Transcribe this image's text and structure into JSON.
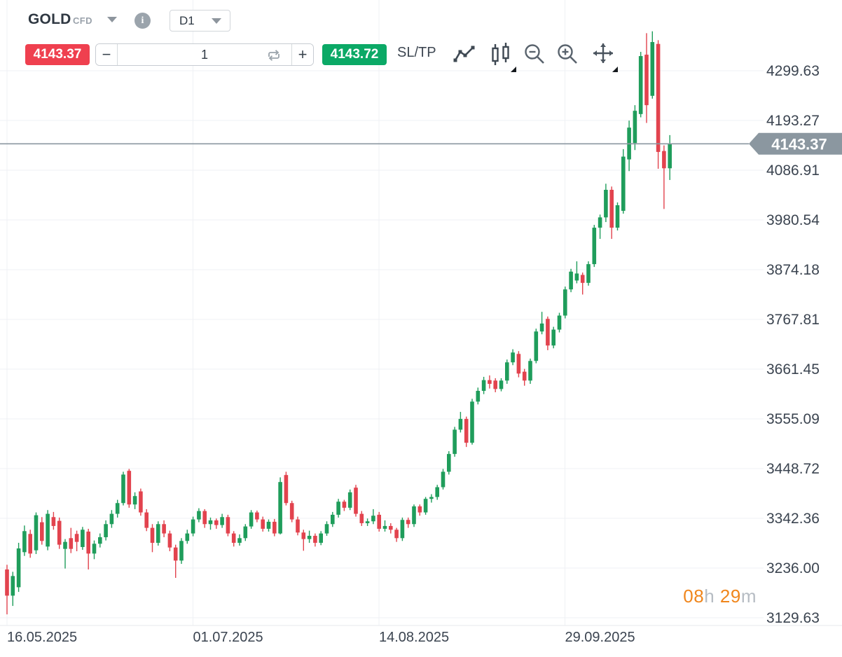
{
  "header": {
    "symbol": "GOLD",
    "type_label": "CFD",
    "timeframe": "D1"
  },
  "toolbar": {
    "sell_price": "4143.37",
    "buy_price": "4143.72",
    "volume": "1",
    "minus_label": "−",
    "plus_label": "+",
    "sltp": "SL/TP",
    "icons": [
      "line-chart",
      "candlestick-style",
      "zoom-out",
      "zoom-in",
      "pan"
    ]
  },
  "countdown": {
    "hours": "08",
    "hours_unit": "h",
    "minutes": "29",
    "minutes_unit": "m"
  },
  "colors": {
    "candle_up": "#1f9d5b",
    "candle_down": "#e2434e",
    "sell_button": "#ef404f",
    "buy_button": "#0ba966",
    "price_line": "#8b97a0",
    "price_tag_bg": "#8b97a0",
    "axis_text": "#3b4450",
    "gridline": "#eff1f4",
    "countdown_orange": "#f0861c"
  },
  "chart_data": {
    "type": "candlestick",
    "title": "GOLD CFD D1",
    "current_price": 4143.37,
    "current_price_label": "4143.37",
    "grid": true,
    "legend": "none",
    "y_axis_labels": [
      "4299.63",
      "4193.27",
      "4086.91",
      "3980.54",
      "3874.18",
      "3767.81",
      "3661.45",
      "3555.09",
      "3448.72",
      "3342.36",
      "3236.00",
      "3129.63"
    ],
    "x_axis_labels": [
      {
        "label": "16.05.2025",
        "x": 10
      },
      {
        "label": "01.07.2025",
        "x": 275.5
      },
      {
        "label": "14.08.2025",
        "x": 541
      },
      {
        "label": "29.09.2025",
        "x": 806.5
      }
    ],
    "ylim": [
      3129.63,
      4299.63
    ],
    "candles_format": "[open, high, low, close] one trading day per entry, left candle = 16.05.2025, last candle = current day",
    "candles": [
      [
        3233,
        3243,
        3137,
        3177
      ],
      [
        3177,
        3228,
        3155,
        3219
      ],
      [
        3195,
        3290,
        3185,
        3278
      ],
      [
        3270,
        3327,
        3262,
        3315
      ],
      [
        3309,
        3318,
        3258,
        3267
      ],
      [
        3274,
        3355,
        3266,
        3349
      ],
      [
        3334,
        3345,
        3286,
        3294
      ],
      [
        3282,
        3360,
        3274,
        3352
      ],
      [
        3345,
        3356,
        3318,
        3326
      ],
      [
        3337,
        3344,
        3277,
        3286
      ],
      [
        3277,
        3298,
        3235,
        3292
      ],
      [
        3300,
        3322,
        3268,
        3277
      ],
      [
        3309,
        3316,
        3272,
        3292
      ],
      [
        3281,
        3324,
        3275,
        3318
      ],
      [
        3314,
        3320,
        3233,
        3267
      ],
      [
        3267,
        3295,
        3255,
        3288
      ],
      [
        3288,
        3310,
        3280,
        3302
      ],
      [
        3302,
        3338,
        3295,
        3330
      ],
      [
        3330,
        3360,
        3322,
        3352
      ],
      [
        3352,
        3382,
        3344,
        3375
      ],
      [
        3375,
        3442,
        3370,
        3436
      ],
      [
        3444,
        3448,
        3365,
        3372
      ],
      [
        3372,
        3398,
        3362,
        3390
      ],
      [
        3400,
        3406,
        3348,
        3355
      ],
      [
        3355,
        3362,
        3315,
        3322
      ],
      [
        3322,
        3330,
        3270,
        3290
      ],
      [
        3290,
        3336,
        3284,
        3330
      ],
      [
        3330,
        3338,
        3302,
        3310
      ],
      [
        3310,
        3316,
        3272,
        3280
      ],
      [
        3280,
        3286,
        3215,
        3252
      ],
      [
        3252,
        3300,
        3245,
        3294
      ],
      [
        3294,
        3318,
        3288,
        3310
      ],
      [
        3310,
        3346,
        3304,
        3340
      ],
      [
        3340,
        3364,
        3334,
        3358
      ],
      [
        3358,
        3362,
        3322,
        3330
      ],
      [
        3330,
        3344,
        3318,
        3338
      ],
      [
        3338,
        3342,
        3320,
        3328
      ],
      [
        3328,
        3352,
        3322,
        3345
      ],
      [
        3345,
        3350,
        3304,
        3310
      ],
      [
        3310,
        3315,
        3282,
        3290
      ],
      [
        3290,
        3308,
        3284,
        3300
      ],
      [
        3300,
        3330,
        3294,
        3325
      ],
      [
        3325,
        3360,
        3320,
        3355
      ],
      [
        3355,
        3359,
        3334,
        3340
      ],
      [
        3340,
        3346,
        3314,
        3320
      ],
      [
        3320,
        3340,
        3314,
        3335
      ],
      [
        3335,
        3341,
        3304,
        3310
      ],
      [
        3310,
        3430,
        3308,
        3420
      ],
      [
        3435,
        3442,
        3370,
        3375
      ],
      [
        3375,
        3380,
        3334,
        3340
      ],
      [
        3340,
        3346,
        3306,
        3312
      ],
      [
        3312,
        3318,
        3273,
        3298
      ],
      [
        3298,
        3316,
        3290,
        3305
      ],
      [
        3305,
        3310,
        3282,
        3290
      ],
      [
        3290,
        3315,
        3285,
        3310
      ],
      [
        3310,
        3336,
        3305,
        3330
      ],
      [
        3330,
        3356,
        3324,
        3350
      ],
      [
        3350,
        3384,
        3344,
        3378
      ],
      [
        3378,
        3382,
        3358,
        3365
      ],
      [
        3365,
        3404,
        3360,
        3398
      ],
      [
        3408,
        3414,
        3346,
        3352
      ],
      [
        3352,
        3358,
        3326,
        3332
      ],
      [
        3332,
        3342,
        3326,
        3336
      ],
      [
        3336,
        3362,
        3330,
        3348
      ],
      [
        3350,
        3356,
        3314,
        3320
      ],
      [
        3320,
        3338,
        3314,
        3326
      ],
      [
        3326,
        3332,
        3310,
        3318
      ],
      [
        3318,
        3322,
        3292,
        3300
      ],
      [
        3300,
        3344,
        3294,
        3339
      ],
      [
        3339,
        3344,
        3322,
        3330
      ],
      [
        3330,
        3372,
        3324,
        3368
      ],
      [
        3368,
        3372,
        3348,
        3355
      ],
      [
        3355,
        3388,
        3350,
        3384
      ],
      [
        3384,
        3394,
        3376,
        3388
      ],
      [
        3388,
        3414,
        3382,
        3409
      ],
      [
        3409,
        3448,
        3404,
        3442
      ],
      [
        3442,
        3486,
        3436,
        3480
      ],
      [
        3480,
        3538,
        3474,
        3532
      ],
      [
        3532,
        3570,
        3526,
        3555
      ],
      [
        3555,
        3560,
        3495,
        3504
      ],
      [
        3504,
        3598,
        3500,
        3592
      ],
      [
        3592,
        3622,
        3586,
        3615
      ],
      [
        3615,
        3645,
        3608,
        3638
      ],
      [
        3638,
        3648,
        3620,
        3630
      ],
      [
        3637,
        3642,
        3612,
        3619
      ],
      [
        3619,
        3642,
        3614,
        3637
      ],
      [
        3637,
        3682,
        3630,
        3676
      ],
      [
        3676,
        3704,
        3670,
        3697
      ],
      [
        3694,
        3700,
        3644,
        3652
      ],
      [
        3656,
        3662,
        3626,
        3637
      ],
      [
        3637,
        3684,
        3630,
        3679
      ],
      [
        3679,
        3748,
        3674,
        3742
      ],
      [
        3742,
        3784,
        3736,
        3759
      ],
      [
        3769,
        3774,
        3702,
        3712
      ],
      [
        3712,
        3752,
        3706,
        3746
      ],
      [
        3746,
        3782,
        3740,
        3776
      ],
      [
        3776,
        3838,
        3770,
        3832
      ],
      [
        3832,
        3876,
        3826,
        3870
      ],
      [
        3851,
        3892,
        3845,
        3866
      ],
      [
        3863,
        3868,
        3821,
        3846
      ],
      [
        3846,
        3892,
        3840,
        3886
      ],
      [
        3886,
        3970,
        3880,
        3964
      ],
      [
        3964,
        3992,
        3940,
        3986
      ],
      [
        3986,
        4058,
        3976,
        4045
      ],
      [
        4045,
        4052,
        3940,
        3964
      ],
      [
        3964,
        4018,
        3958,
        4012
      ],
      [
        4000,
        4132,
        3994,
        4116
      ],
      [
        4110,
        4193,
        4085,
        4178
      ],
      [
        4145,
        4226,
        4130,
        4214
      ],
      [
        4207,
        4340,
        4200,
        4331
      ],
      [
        4334,
        4380,
        4188,
        4226
      ],
      [
        4246,
        4384,
        4240,
        4361
      ],
      [
        4357,
        4365,
        4090,
        4126
      ],
      [
        4128,
        4140,
        4004,
        4091
      ],
      [
        4091,
        4162,
        4066,
        4143.37
      ]
    ]
  }
}
